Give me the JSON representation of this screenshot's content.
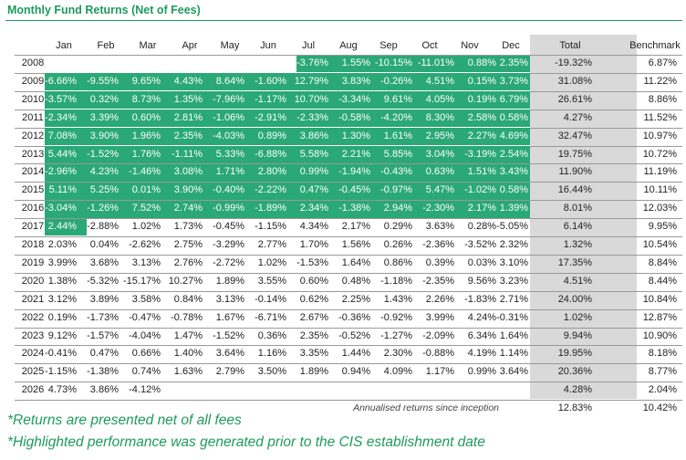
{
  "title": "Monthly Fund Returns (Net of Fees)",
  "columns": [
    "Jan",
    "Feb",
    "Mar",
    "Apr",
    "May",
    "Jun",
    "Jul",
    "Aug",
    "Sep",
    "Oct",
    "Nov",
    "Dec",
    "Total",
    "Benchmark"
  ],
  "rows": [
    {
      "year": "2008",
      "months": [
        "",
        "",
        "",
        "",
        "",
        "",
        "-3.76%",
        "1.55%",
        "-10.15%",
        "-11.01%",
        "0.88%",
        "2.35%"
      ],
      "total": "-19.32%",
      "benchmark": "6.87%",
      "highlight_start": 6,
      "highlight_end": 11
    },
    {
      "year": "2009",
      "months": [
        "-6.66%",
        "-9.55%",
        "9.65%",
        "4.43%",
        "8.64%",
        "-1.60%",
        "12.79%",
        "3.83%",
        "-0.26%",
        "4.51%",
        "0.15%",
        "3.73%"
      ],
      "total": "31.08%",
      "benchmark": "11.22%",
      "highlight_start": 0,
      "highlight_end": 11
    },
    {
      "year": "2010",
      "months": [
        "-3.57%",
        "0.32%",
        "8.73%",
        "1.35%",
        "-7.96%",
        "-1.17%",
        "10.70%",
        "-3.34%",
        "9.61%",
        "4.05%",
        "0.19%",
        "6.79%"
      ],
      "total": "26.61%",
      "benchmark": "8.86%",
      "highlight_start": 0,
      "highlight_end": 11
    },
    {
      "year": "2011",
      "months": [
        "-2.34%",
        "3.39%",
        "0.60%",
        "2.81%",
        "-1.06%",
        "-2.91%",
        "-2.33%",
        "-0.58%",
        "-4.20%",
        "8.30%",
        "2.58%",
        "0.58%"
      ],
      "total": "4.27%",
      "benchmark": "11.52%",
      "highlight_start": 0,
      "highlight_end": 11
    },
    {
      "year": "2012",
      "months": [
        "7.08%",
        "3.90%",
        "1.96%",
        "2.35%",
        "-4.03%",
        "0.89%",
        "3.86%",
        "1.30%",
        "1.61%",
        "2.95%",
        "2.27%",
        "4.69%"
      ],
      "total": "32.47%",
      "benchmark": "10.97%",
      "highlight_start": 0,
      "highlight_end": 11
    },
    {
      "year": "2013",
      "months": [
        "5.44%",
        "-1.52%",
        "1.76%",
        "-1.11%",
        "5.33%",
        "-6.88%",
        "5.58%",
        "2.21%",
        "5.85%",
        "3.04%",
        "-3.19%",
        "2.54%"
      ],
      "total": "19.75%",
      "benchmark": "10.72%",
      "highlight_start": 0,
      "highlight_end": 11
    },
    {
      "year": "2014",
      "months": [
        "-2.96%",
        "4.23%",
        "-1.46%",
        "3.08%",
        "1.71%",
        "2.80%",
        "0.99%",
        "-1.94%",
        "-0.43%",
        "0.63%",
        "1.51%",
        "3.43%"
      ],
      "total": "11.90%",
      "benchmark": "11.19%",
      "highlight_start": 0,
      "highlight_end": 11
    },
    {
      "year": "2015",
      "months": [
        "5.11%",
        "5.25%",
        "0.01%",
        "3.90%",
        "-0.40%",
        "-2.22%",
        "0.47%",
        "-0.45%",
        "-0.97%",
        "5.47%",
        "-1.02%",
        "0.58%"
      ],
      "total": "16.44%",
      "benchmark": "10.11%",
      "highlight_start": 0,
      "highlight_end": 11
    },
    {
      "year": "2016",
      "months": [
        "-3.04%",
        "-1.26%",
        "7.52%",
        "2.74%",
        "-0.99%",
        "-1.89%",
        "2.34%",
        "-1.38%",
        "2.94%",
        "-2.30%",
        "2.17%",
        "1.39%"
      ],
      "total": "8.01%",
      "benchmark": "12.03%",
      "highlight_start": 0,
      "highlight_end": 11
    },
    {
      "year": "2017",
      "months": [
        "2.44%",
        "-2.88%",
        "1.02%",
        "1.73%",
        "-0.45%",
        "-1.15%",
        "4.34%",
        "2.17%",
        "0.29%",
        "3.63%",
        "0.28%",
        "-5.05%"
      ],
      "total": "6.14%",
      "benchmark": "9.95%",
      "highlight_start": 0,
      "highlight_end": 0
    },
    {
      "year": "2018",
      "months": [
        "2.03%",
        "0.04%",
        "-2.62%",
        "2.75%",
        "-3.29%",
        "2.77%",
        "1.70%",
        "1.56%",
        "0.26%",
        "-2.36%",
        "-3.52%",
        "2.32%"
      ],
      "total": "1.32%",
      "benchmark": "10.54%",
      "highlight_start": -1,
      "highlight_end": -1
    },
    {
      "year": "2019",
      "months": [
        "3.99%",
        "3.68%",
        "3.13%",
        "2.76%",
        "-2.72%",
        "1.02%",
        "-1.53%",
        "1.64%",
        "0.86%",
        "0.39%",
        "0.03%",
        "3.10%"
      ],
      "total": "17.35%",
      "benchmark": "8.84%",
      "highlight_start": -1,
      "highlight_end": -1
    },
    {
      "year": "2020",
      "months": [
        "1.38%",
        "-5.32%",
        "-15.17%",
        "10.27%",
        "1.89%",
        "3.55%",
        "0.60%",
        "0.48%",
        "-1.18%",
        "-2.35%",
        "9.56%",
        "3.23%"
      ],
      "total": "4.51%",
      "benchmark": "8.44%",
      "highlight_start": -1,
      "highlight_end": -1
    },
    {
      "year": "2021",
      "months": [
        "3.12%",
        "3.89%",
        "3.58%",
        "0.84%",
        "3.13%",
        "-0.14%",
        "0.62%",
        "2.25%",
        "1.43%",
        "2.26%",
        "-1.83%",
        "2.71%"
      ],
      "total": "24.00%",
      "benchmark": "10.84%",
      "highlight_start": -1,
      "highlight_end": -1
    },
    {
      "year": "2022",
      "months": [
        "0.19%",
        "-1.73%",
        "-0.47%",
        "-0.78%",
        "1.67%",
        "-6.71%",
        "2.67%",
        "-0.36%",
        "-0.92%",
        "3.99%",
        "4.24%",
        "-0.31%"
      ],
      "total": "1.02%",
      "benchmark": "12.87%",
      "highlight_start": -1,
      "highlight_end": -1
    },
    {
      "year": "2023",
      "months": [
        "9.12%",
        "-1.57%",
        "-4.04%",
        "1.47%",
        "-1.52%",
        "0.36%",
        "2.35%",
        "-0.52%",
        "-1.27%",
        "-2.09%",
        "6.34%",
        "1.64%"
      ],
      "total": "9.94%",
      "benchmark": "10.90%",
      "highlight_start": -1,
      "highlight_end": -1
    },
    {
      "year": "2024",
      "months": [
        "-0.41%",
        "0.47%",
        "0.66%",
        "1.40%",
        "3.64%",
        "1.16%",
        "3.35%",
        "1.44%",
        "2.30%",
        "-0.88%",
        "4.19%",
        "1.14%"
      ],
      "total": "19.95%",
      "benchmark": "8.18%",
      "highlight_start": -1,
      "highlight_end": -1
    },
    {
      "year": "2025",
      "months": [
        "-1.15%",
        "-1.38%",
        "0.74%",
        "1.63%",
        "2.79%",
        "3.50%",
        "1.89%",
        "0.94%",
        "4.09%",
        "1.17%",
        "0.99%",
        "3.64%"
      ],
      "total": "20.36%",
      "benchmark": "8.77%",
      "highlight_start": -1,
      "highlight_end": -1
    },
    {
      "year": "2026",
      "months": [
        "4.73%",
        "3.86%",
        "-4.12%",
        "",
        "",
        "",
        "",
        "",
        "",
        "",
        "",
        ""
      ],
      "total": "4.28%",
      "benchmark": "2.04%",
      "highlight_start": -1,
      "highlight_end": -1
    }
  ],
  "annualised": {
    "label": "Annualised returns since inception",
    "total": "12.83%",
    "benchmark": "10.42%"
  },
  "notes": [
    "*Returns are presented net of all fees",
    "*Highlighted performance was generated prior to the CIS establishment date"
  ],
  "colors": {
    "highlight": "#2aa876",
    "title": "#1e9a5e",
    "total_column": "#d9d9d9"
  }
}
